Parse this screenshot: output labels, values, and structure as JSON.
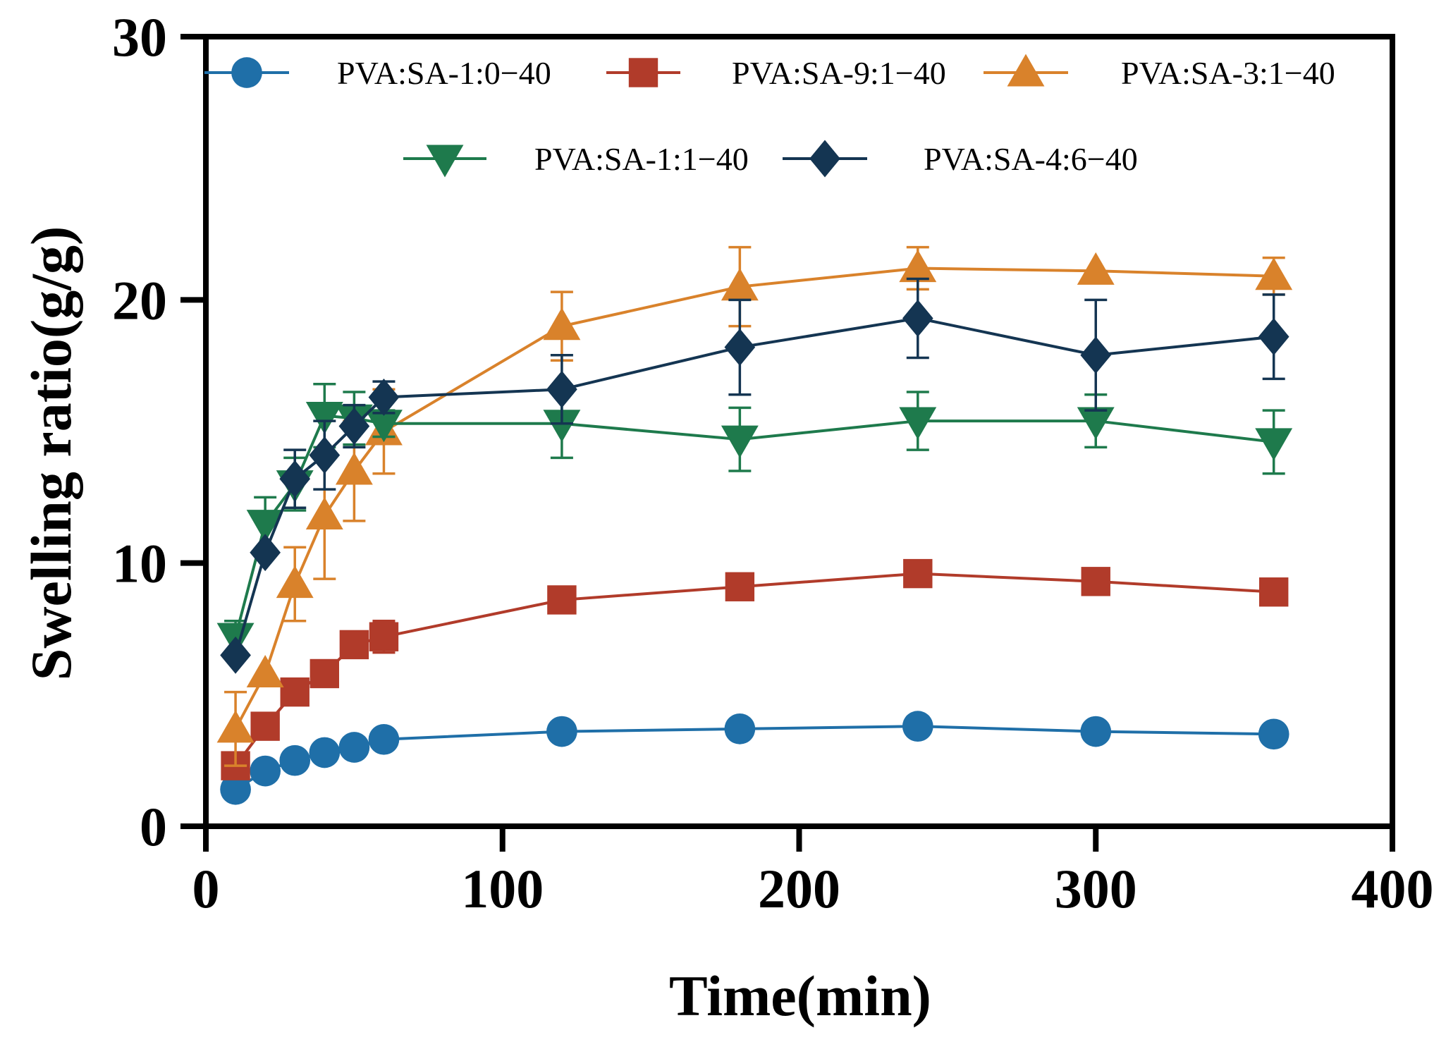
{
  "chart_data": {
    "type": "line",
    "title": "",
    "xlabel": "Time(min)",
    "ylabel": "Swelling ratio(g/g)",
    "xlim": [
      0,
      400
    ],
    "ylim": [
      0,
      30
    ],
    "xticks": [
      0,
      100,
      200,
      300,
      400
    ],
    "yticks": [
      0,
      10,
      20,
      30
    ],
    "xtick_labels": [
      "0",
      "100",
      "200",
      "300",
      "400"
    ],
    "ytick_labels": [
      "0",
      "10",
      "20",
      "30"
    ],
    "grid": false,
    "legend_position": "top",
    "x": [
      10,
      20,
      30,
      40,
      50,
      60,
      120,
      180,
      240,
      300,
      360
    ],
    "series": [
      {
        "name": "PVA:SA-1:0−40",
        "color": "#1f6fa8",
        "marker": "circle",
        "values": [
          1.4,
          2.1,
          2.5,
          2.8,
          3.0,
          3.3,
          3.6,
          3.7,
          3.8,
          3.6,
          3.5
        ],
        "errors": [
          0,
          0,
          0,
          0,
          0,
          0,
          0,
          0,
          0,
          0,
          0
        ]
      },
      {
        "name": "PVA:SA-9:1−40",
        "color": "#b13b2a",
        "marker": "square",
        "values": [
          2.3,
          3.8,
          5.1,
          5.8,
          6.9,
          7.2,
          8.6,
          9.1,
          9.6,
          9.3,
          8.9
        ],
        "errors": [
          0,
          0.5,
          0.5,
          0.5,
          0.5,
          0.6,
          0.4,
          0,
          0,
          0,
          0
        ]
      },
      {
        "name": "PVA:SA-3:1−40",
        "color": "#d9822b",
        "marker": "triangle-up",
        "values": [
          3.7,
          5.8,
          9.2,
          11.8,
          13.5,
          15.0,
          19.0,
          20.5,
          21.2,
          21.1,
          20.9
        ],
        "errors": [
          1.4,
          0,
          1.4,
          2.4,
          1.9,
          1.6,
          1.3,
          1.5,
          0.8,
          0,
          0.7
        ]
      },
      {
        "name": "PVA:SA-1:1−40",
        "color": "#1e7a4c",
        "marker": "triangle-down",
        "values": [
          7.2,
          11.5,
          13.0,
          15.6,
          15.5,
          15.3,
          15.3,
          14.7,
          15.4,
          15.4,
          14.6
        ],
        "errors": [
          0.6,
          1.0,
          1.0,
          1.2,
          1.0,
          0.5,
          1.3,
          1.2,
          1.1,
          1.0,
          1.2
        ]
      },
      {
        "name": "PVA:SA-4:6−40",
        "color": "#143552",
        "marker": "diamond",
        "values": [
          6.5,
          10.4,
          13.2,
          14.1,
          15.2,
          16.3,
          16.6,
          18.2,
          19.3,
          17.9,
          18.6
        ],
        "errors": [
          0,
          0,
          1.1,
          1.3,
          0.8,
          0.6,
          1.3,
          1.8,
          1.5,
          2.1,
          1.6
        ]
      }
    ]
  }
}
